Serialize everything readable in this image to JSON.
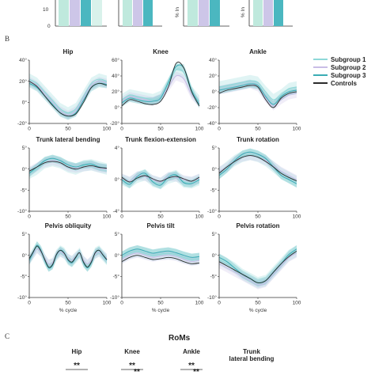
{
  "section_b_label": "B",
  "section_c_label": "C",
  "colors": {
    "subgroup1": "#8ed8d8",
    "subgroup2": "#c9bde6",
    "subgroup3": "#3aacb4",
    "controls": "#2b2b2b",
    "bar_green": "#bfe9dd",
    "bar_lilac": "#cdc6e8",
    "bar_teal": "#4bb7c0"
  },
  "top_fragment": {
    "ytick_10": "10",
    "ytick_0": "0",
    "ylabel": "% In"
  },
  "legend": {
    "items": [
      {
        "label": "Subgroup 1",
        "color": "#8ed8d8"
      },
      {
        "label": "Subgroup 2",
        "color": "#c9bde6"
      },
      {
        "label": "Subgroup 3",
        "color": "#3aacb4"
      },
      {
        "label": "Controls",
        "color": "#2b2b2b"
      }
    ]
  },
  "xlabel": "% cycle",
  "chart_data": [
    {
      "type": "line",
      "title": "Hip",
      "ylim": [
        -20,
        40
      ],
      "yticks": [
        "40°",
        "20°",
        "0°",
        "-20°"
      ],
      "xticks": [
        "0",
        "50",
        "100"
      ],
      "x": [
        0,
        10,
        20,
        30,
        40,
        50,
        60,
        70,
        80,
        90,
        100
      ],
      "series": [
        {
          "name": "Subgroup 1",
          "values": [
            22,
            18,
            10,
            2,
            -6,
            -10,
            -6,
            6,
            18,
            22,
            20
          ]
        },
        {
          "name": "Subgroup 2",
          "values": [
            20,
            16,
            8,
            0,
            -8,
            -12,
            -8,
            4,
            16,
            20,
            18
          ]
        },
        {
          "name": "Subgroup 3",
          "values": [
            18,
            14,
            6,
            -2,
            -10,
            -13,
            -10,
            2,
            14,
            18,
            17
          ]
        },
        {
          "name": "Controls",
          "values": [
            20,
            15,
            6,
            -3,
            -10,
            -13,
            -11,
            0,
            14,
            18,
            16
          ]
        }
      ]
    },
    {
      "type": "line",
      "title": "Knee",
      "ylim": [
        -20,
        60
      ],
      "yticks": [
        "60°",
        "40°",
        "20°",
        "0°",
        "-20°"
      ],
      "xticks": [
        "0",
        "50",
        "100"
      ],
      "x": [
        0,
        10,
        20,
        30,
        40,
        50,
        60,
        70,
        80,
        90,
        100
      ],
      "series": [
        {
          "name": "Subgroup 1",
          "values": [
            10,
            16,
            14,
            12,
            10,
            14,
            30,
            48,
            44,
            20,
            8
          ]
        },
        {
          "name": "Subgroup 2",
          "values": [
            8,
            14,
            12,
            10,
            8,
            12,
            26,
            40,
            36,
            16,
            6
          ]
        },
        {
          "name": "Subgroup 3",
          "values": [
            6,
            12,
            10,
            8,
            8,
            12,
            32,
            52,
            50,
            22,
            4
          ]
        },
        {
          "name": "Controls",
          "values": [
            2,
            10,
            8,
            5,
            4,
            8,
            26,
            56,
            50,
            20,
            2
          ]
        }
      ]
    },
    {
      "type": "line",
      "title": "Ankle",
      "ylim": [
        -40,
        40
      ],
      "yticks": [
        "40°",
        "20°",
        "0°",
        "-20°",
        "-40°"
      ],
      "xticks": [
        "0",
        "50",
        "100"
      ],
      "x": [
        0,
        10,
        20,
        30,
        40,
        50,
        60,
        70,
        80,
        90,
        100
      ],
      "series": [
        {
          "name": "Subgroup 1",
          "values": [
            6,
            8,
            10,
            12,
            14,
            12,
            0,
            -10,
            -4,
            4,
            6
          ]
        },
        {
          "name": "Subgroup 2",
          "values": [
            2,
            4,
            6,
            8,
            10,
            6,
            -8,
            -18,
            -10,
            -4,
            -2
          ]
        },
        {
          "name": "Subgroup 3",
          "values": [
            2,
            4,
            6,
            8,
            10,
            8,
            -6,
            -16,
            -6,
            0,
            2
          ]
        },
        {
          "name": "Controls",
          "values": [
            -2,
            2,
            4,
            6,
            8,
            6,
            -10,
            -20,
            -8,
            -2,
            0
          ]
        }
      ]
    },
    {
      "type": "line",
      "title": "Trunk lateral bending",
      "ylim": [
        -10,
        5
      ],
      "yticks": [
        "5°",
        "0°",
        "-5°",
        "-10°"
      ],
      "xticks": [
        "0",
        "50",
        "100"
      ],
      "x": [
        0,
        10,
        20,
        30,
        40,
        50,
        60,
        70,
        80,
        90,
        100
      ],
      "series": [
        {
          "name": "Subgroup 1",
          "values": [
            -1,
            0,
            1.5,
            2,
            1.5,
            0.5,
            0,
            0.8,
            1,
            0.5,
            0
          ]
        },
        {
          "name": "Subgroup 2",
          "values": [
            -0.5,
            0.5,
            1.5,
            2,
            1.5,
            0.5,
            0.2,
            0.5,
            0.8,
            0.3,
            0
          ]
        },
        {
          "name": "Subgroup 3",
          "values": [
            -1,
            0.5,
            2,
            2.5,
            2,
            1,
            0.5,
            1,
            1.2,
            0.5,
            0.2
          ]
        },
        {
          "name": "Controls",
          "values": [
            -0.5,
            0.5,
            1.5,
            1.8,
            1.5,
            0.5,
            0,
            0.5,
            0.8,
            0.4,
            0.2
          ]
        }
      ]
    },
    {
      "type": "line",
      "title": "Trunk flexion-extension",
      "ylim": [
        -4,
        4
      ],
      "yticks": [
        "4°",
        "0°",
        "-4°"
      ],
      "xticks": [
        "0",
        "50",
        "100"
      ],
      "x": [
        0,
        10,
        20,
        30,
        40,
        50,
        60,
        70,
        80,
        90,
        100
      ],
      "series": [
        {
          "name": "Subgroup 1",
          "values": [
            0,
            -0.4,
            0.3,
            0.6,
            -0.2,
            -0.5,
            0.2,
            0.5,
            -0.3,
            -0.4,
            0
          ]
        },
        {
          "name": "Subgroup 2",
          "values": [
            0.2,
            -0.2,
            0.5,
            0.4,
            0,
            -0.3,
            0.4,
            0.3,
            0,
            -0.2,
            0.2
          ]
        },
        {
          "name": "Subgroup 3",
          "values": [
            0,
            -0.6,
            0.4,
            0.8,
            -0.3,
            -0.7,
            0.3,
            0.6,
            -0.4,
            -0.5,
            0
          ]
        },
        {
          "name": "Controls",
          "values": [
            0.3,
            -0.3,
            0.2,
            0.5,
            0.1,
            -0.2,
            0.2,
            0.4,
            0.1,
            -0.2,
            0.3
          ]
        }
      ]
    },
    {
      "type": "line",
      "title": "Trunk rotation",
      "ylim": [
        -10,
        5
      ],
      "yticks": [
        "5°",
        "0°",
        "-5°",
        "-10°"
      ],
      "xticks": [
        "0",
        "50",
        "100"
      ],
      "x": [
        0,
        10,
        20,
        30,
        40,
        50,
        60,
        70,
        80,
        90,
        100
      ],
      "series": [
        {
          "name": "Subgroup 1",
          "values": [
            -1,
            0.5,
            2,
            3,
            3.5,
            3,
            2,
            0.5,
            -1,
            -2,
            -3
          ]
        },
        {
          "name": "Subgroup 2",
          "values": [
            -0.5,
            0.5,
            2,
            2.8,
            3.2,
            2.8,
            2,
            0.8,
            -0.5,
            -1.5,
            -2.5
          ]
        },
        {
          "name": "Subgroup 3",
          "values": [
            -1.5,
            0,
            2,
            3.5,
            4,
            3.5,
            2.5,
            0.5,
            -1.5,
            -2.5,
            -3.5
          ]
        },
        {
          "name": "Controls",
          "values": [
            -1,
            0.5,
            1.8,
            2.8,
            3.2,
            2.8,
            1.8,
            0.5,
            -1,
            -2,
            -2.8
          ]
        }
      ]
    },
    {
      "type": "line",
      "title": "Pelvis obliquity",
      "ylim": [
        -10,
        5
      ],
      "yticks": [
        "5°",
        "0°",
        "-5°",
        "-10°"
      ],
      "xticks": [
        "0",
        "50",
        "100"
      ],
      "x": [
        0,
        5,
        10,
        15,
        20,
        25,
        30,
        35,
        40,
        45,
        50,
        55,
        60,
        65,
        70,
        75,
        80,
        85,
        90,
        95,
        100
      ],
      "series": [
        {
          "name": "Subgroup 1",
          "values": [
            -1,
            0.5,
            2,
            1,
            -1,
            -2.5,
            -2,
            0,
            1,
            0.5,
            -1,
            -1.5,
            -0.5,
            0.5,
            -1.5,
            -2.5,
            -1.5,
            0.5,
            1,
            0,
            -1
          ]
        },
        {
          "name": "Subgroup 2",
          "values": [
            -1,
            0.3,
            1.5,
            0.8,
            -0.8,
            -2,
            -1.8,
            0,
            0.8,
            0.3,
            -0.8,
            -1.2,
            -0.3,
            0.4,
            -1.2,
            -2,
            -1.2,
            0.3,
            0.8,
            0,
            -0.8
          ]
        },
        {
          "name": "Subgroup 3",
          "values": [
            -1.2,
            0.6,
            2.4,
            1.2,
            -1.2,
            -3,
            -2.4,
            0,
            1.2,
            0.6,
            -1.2,
            -1.8,
            -0.6,
            0.6,
            -1.8,
            -3,
            -1.8,
            0.6,
            1.2,
            0,
            -1.2
          ]
        },
        {
          "name": "Controls",
          "values": [
            -0.8,
            0.8,
            2.2,
            1,
            -1,
            -2.8,
            -2.2,
            0.2,
            1.2,
            0.5,
            -1,
            -1.6,
            -0.4,
            0.6,
            -1.6,
            -2.8,
            -1.6,
            0.6,
            1.2,
            0.1,
            -1
          ]
        }
      ]
    },
    {
      "type": "line",
      "title": "Pelvis tilt",
      "ylim": [
        -10,
        5
      ],
      "yticks": [
        "5°",
        "0°",
        "-5°",
        "-10°"
      ],
      "xticks": [
        "0",
        "50",
        "100"
      ],
      "x": [
        0,
        10,
        20,
        30,
        40,
        50,
        60,
        70,
        80,
        90,
        100
      ],
      "series": [
        {
          "name": "Subgroup 1",
          "values": [
            -0.5,
            0.5,
            1,
            0.5,
            0,
            0.3,
            0.5,
            0.2,
            -0.5,
            -1,
            -0.8
          ]
        },
        {
          "name": "Subgroup 2",
          "values": [
            -1,
            0,
            0.5,
            0,
            -0.5,
            -0.2,
            0,
            -0.3,
            -1,
            -1.5,
            -1.2
          ]
        },
        {
          "name": "Subgroup 3",
          "values": [
            0,
            1,
            1.5,
            1,
            0.5,
            0.8,
            1,
            0.6,
            0,
            -0.5,
            -0.3
          ]
        },
        {
          "name": "Controls",
          "values": [
            -1.5,
            -0.5,
            0,
            -0.5,
            -1,
            -0.8,
            -0.5,
            -0.8,
            -1.5,
            -2,
            -1.8
          ]
        }
      ]
    },
    {
      "type": "line",
      "title": "Pelvis rotation",
      "ylim": [
        -10,
        5
      ],
      "yticks": [
        "5°",
        "0°",
        "-5°",
        "-10°"
      ],
      "xticks": [
        "0",
        "50",
        "100"
      ],
      "x": [
        0,
        10,
        20,
        30,
        40,
        50,
        60,
        70,
        80,
        90,
        100
      ],
      "series": [
        {
          "name": "Subgroup 1",
          "values": [
            -1,
            -2,
            -3,
            -4.5,
            -5.5,
            -6.5,
            -6,
            -4,
            -2,
            0,
            1
          ]
        },
        {
          "name": "Subgroup 2",
          "values": [
            -2,
            -3,
            -4,
            -5,
            -6,
            -7,
            -6.5,
            -4.5,
            -2.5,
            -0.5,
            0.5
          ]
        },
        {
          "name": "Subgroup 3",
          "values": [
            -0.5,
            -1.5,
            -3,
            -4.5,
            -5.5,
            -6.5,
            -6,
            -4,
            -2,
            0.2,
            1.5
          ]
        },
        {
          "name": "Controls",
          "values": [
            -1.5,
            -2.5,
            -3.5,
            -4.5,
            -5.5,
            -6.5,
            -6,
            -4,
            -2,
            -0.3,
            1
          ]
        }
      ]
    }
  ],
  "roms": {
    "title": "RoMs",
    "columns": [
      {
        "label": "Hip",
        "marks": [
          "**"
        ]
      },
      {
        "label": "Knee",
        "marks": [
          "**",
          "**"
        ]
      },
      {
        "label": "Ankle",
        "marks": [
          "**",
          "**"
        ]
      },
      {
        "label": "Trunk\nlateral bending",
        "marks": []
      }
    ]
  }
}
